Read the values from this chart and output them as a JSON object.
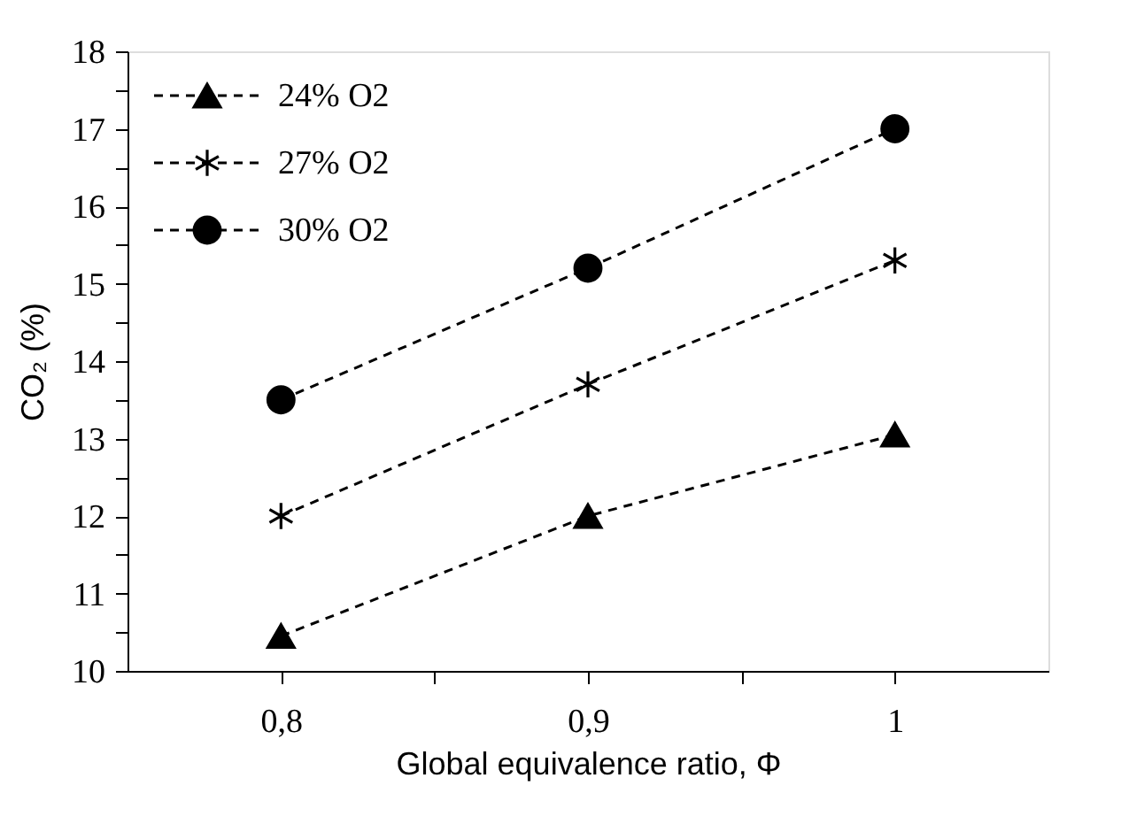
{
  "chart_data": {
    "type": "line",
    "xlabel": "Global equivalence ratio, Φ",
    "ylabel": "CO₂ (%)",
    "x": [
      0.8,
      0.9,
      1.0
    ],
    "series": [
      {
        "name": "24% O2",
        "color": "#000000",
        "marker": "triangle",
        "line_style": "dashed",
        "values": [
          10.45,
          12.0,
          13.05
        ]
      },
      {
        "name": "27% O2",
        "color": "#000000",
        "marker": "cross",
        "line_style": "dashed",
        "values": [
          12.0,
          13.7,
          15.3
        ]
      },
      {
        "name": "30% O2",
        "color": "#000000",
        "marker": "circle",
        "line_style": "dashed",
        "values": [
          13.5,
          15.2,
          17.0
        ]
      }
    ],
    "xlim": [
      0.75,
      1.05
    ],
    "xticks": [
      {
        "value": 0.8,
        "label": "0,8"
      },
      {
        "value": 0.85,
        "label": null
      },
      {
        "value": 0.9,
        "label": "0,9"
      },
      {
        "value": 0.95,
        "label": null
      },
      {
        "value": 1.0,
        "label": "1"
      }
    ],
    "ylim": [
      10,
      18
    ],
    "yticks": [
      10,
      {
        "value": 10.5,
        "label": null
      },
      11,
      {
        "value": 11.5,
        "label": null
      },
      12,
      {
        "value": 12.5,
        "label": null
      },
      13,
      {
        "value": 13.5,
        "label": null
      },
      14,
      {
        "value": 14.5,
        "label": null
      },
      15,
      {
        "value": 15.5,
        "label": null
      },
      16,
      {
        "value": 16.5,
        "label": null
      },
      17,
      {
        "value": 17.5,
        "label": null
      },
      18
    ],
    "grid": false,
    "legend": "top left"
  }
}
